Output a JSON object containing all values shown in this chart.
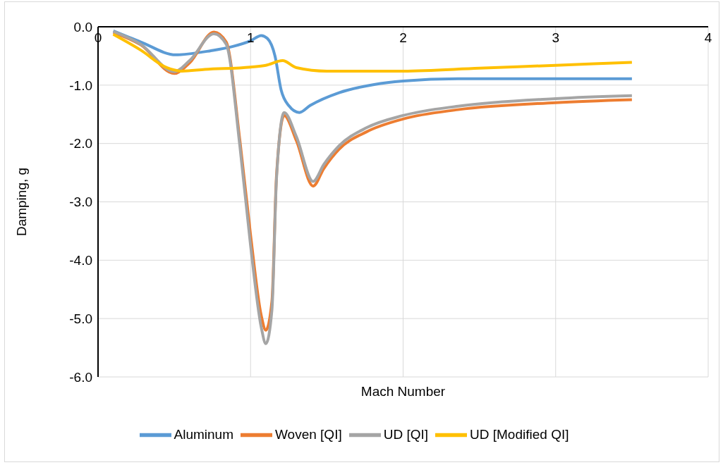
{
  "chart_data": {
    "type": "line",
    "xlabel": "Mach Number",
    "ylabel": "Damping, g",
    "xlim": [
      0,
      4
    ],
    "xticks": [
      0,
      1,
      2,
      3,
      4
    ],
    "ylim": [
      -6,
      0
    ],
    "yticks": [
      {
        "value": -6,
        "label": "-6.0"
      },
      {
        "value": -5,
        "label": "-5.0"
      },
      {
        "value": -4,
        "label": "-4.0"
      },
      {
        "value": -3,
        "label": "-3.0"
      },
      {
        "value": -2,
        "label": "-2.0"
      },
      {
        "value": -1,
        "label": "-1.0"
      },
      {
        "value": 0,
        "label": "0.0"
      }
    ],
    "grid": true,
    "legend": "bottom",
    "line_style": "solid",
    "marker": "none",
    "series": [
      {
        "name": "Aluminum",
        "color": "#5b9bd5",
        "x": [
          0.1,
          0.28,
          0.51,
          0.74,
          0.88,
          1.0,
          1.07,
          1.11,
          1.16,
          1.2,
          1.25,
          1.32,
          1.39,
          1.58,
          1.81,
          2.0,
          2.36,
          3.0,
          3.5
        ],
        "values": [
          -0.07,
          -0.26,
          -0.48,
          -0.41,
          -0.34,
          -0.24,
          -0.15,
          -0.2,
          -0.5,
          -1.08,
          -1.35,
          -1.47,
          -1.35,
          -1.13,
          -0.99,
          -0.93,
          -0.89,
          -0.89,
          -0.89
        ]
      },
      {
        "name": "Woven [QI]",
        "color": "#ed7d31",
        "x": [
          0.1,
          0.28,
          0.5,
          0.6,
          0.76,
          0.84,
          0.93,
          1.0,
          1.07,
          1.1,
          1.14,
          1.17,
          1.22,
          1.3,
          1.41,
          1.48,
          1.58,
          1.76,
          2.0,
          2.36,
          3.0,
          3.5
        ],
        "values": [
          -0.1,
          -0.31,
          -0.8,
          -0.62,
          -0.09,
          -0.26,
          -1.95,
          -3.57,
          -4.95,
          -5.2,
          -4.7,
          -2.55,
          -1.52,
          -1.95,
          -2.73,
          -2.43,
          -2.1,
          -1.8,
          -1.58,
          -1.42,
          -1.3,
          -1.25
        ]
      },
      {
        "name": "UD [QI]",
        "color": "#a5a5a5",
        "x": [
          0.1,
          0.28,
          0.5,
          0.6,
          0.76,
          0.84,
          0.93,
          1.0,
          1.07,
          1.1,
          1.14,
          1.17,
          1.22,
          1.3,
          1.41,
          1.48,
          1.58,
          1.76,
          2.0,
          2.36,
          3.0,
          3.5
        ],
        "values": [
          -0.08,
          -0.3,
          -0.77,
          -0.58,
          -0.12,
          -0.3,
          -2.05,
          -3.75,
          -5.15,
          -5.43,
          -4.85,
          -2.6,
          -1.47,
          -1.88,
          -2.65,
          -2.36,
          -2.04,
          -1.73,
          -1.52,
          -1.36,
          -1.23,
          -1.18
        ]
      },
      {
        "name": "UD [Modified QI]",
        "color": "#ffc000",
        "x": [
          0.1,
          0.28,
          0.45,
          0.55,
          0.7,
          1.0,
          1.1,
          1.21,
          1.3,
          1.5,
          2.0,
          2.5,
          3.0,
          3.5
        ],
        "values": [
          -0.13,
          -0.4,
          -0.7,
          -0.76,
          -0.73,
          -0.69,
          -0.66,
          -0.58,
          -0.7,
          -0.76,
          -0.76,
          -0.71,
          -0.66,
          -0.61
        ]
      }
    ]
  }
}
